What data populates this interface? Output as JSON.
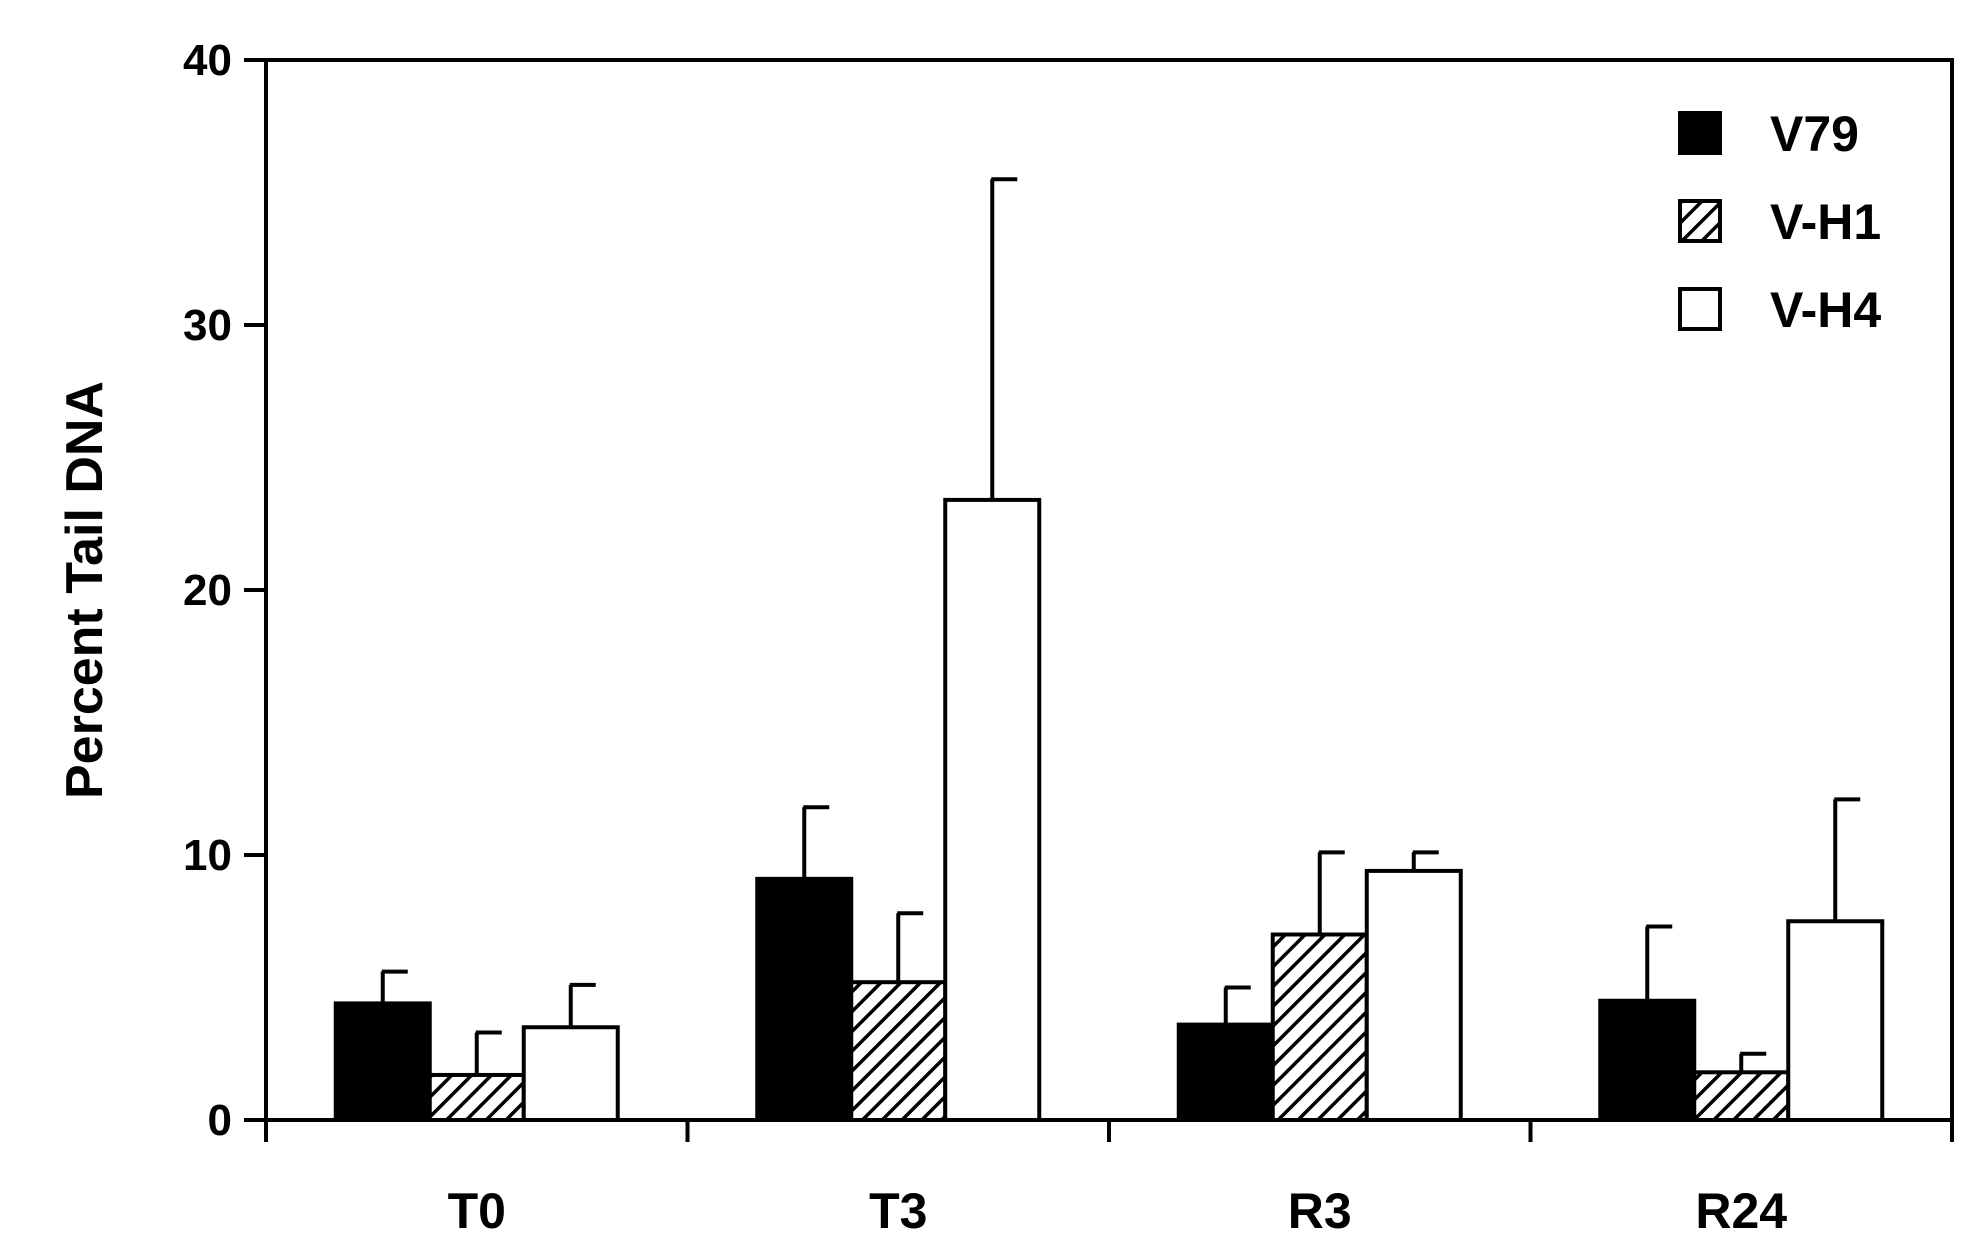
{
  "chart_data": {
    "type": "bar",
    "ylabel": "Percent Tail DNA",
    "xlabel": "",
    "ylim": [
      0,
      40
    ],
    "yticks": [
      0,
      10,
      20,
      30,
      40
    ],
    "categories": [
      "T0",
      "T3",
      "R3",
      "R24"
    ],
    "series": [
      {
        "name": "V79",
        "fill": "solid",
        "color": "#000000",
        "values": [
          4.4,
          9.1,
          3.6,
          4.5
        ],
        "errors": [
          1.2,
          2.7,
          1.4,
          2.8
        ]
      },
      {
        "name": "V-H1",
        "fill": "hatched",
        "color": "#000000",
        "values": [
          1.7,
          5.2,
          7.0,
          1.8
        ],
        "errors": [
          1.6,
          2.6,
          3.1,
          0.7
        ]
      },
      {
        "name": "V-H4",
        "fill": "open",
        "color": "#ffffff",
        "values": [
          3.5,
          23.4,
          9.4,
          7.5
        ],
        "errors": [
          1.6,
          12.1,
          0.7,
          4.6
        ]
      }
    ],
    "legend_position": "top-right",
    "grid": false
  }
}
